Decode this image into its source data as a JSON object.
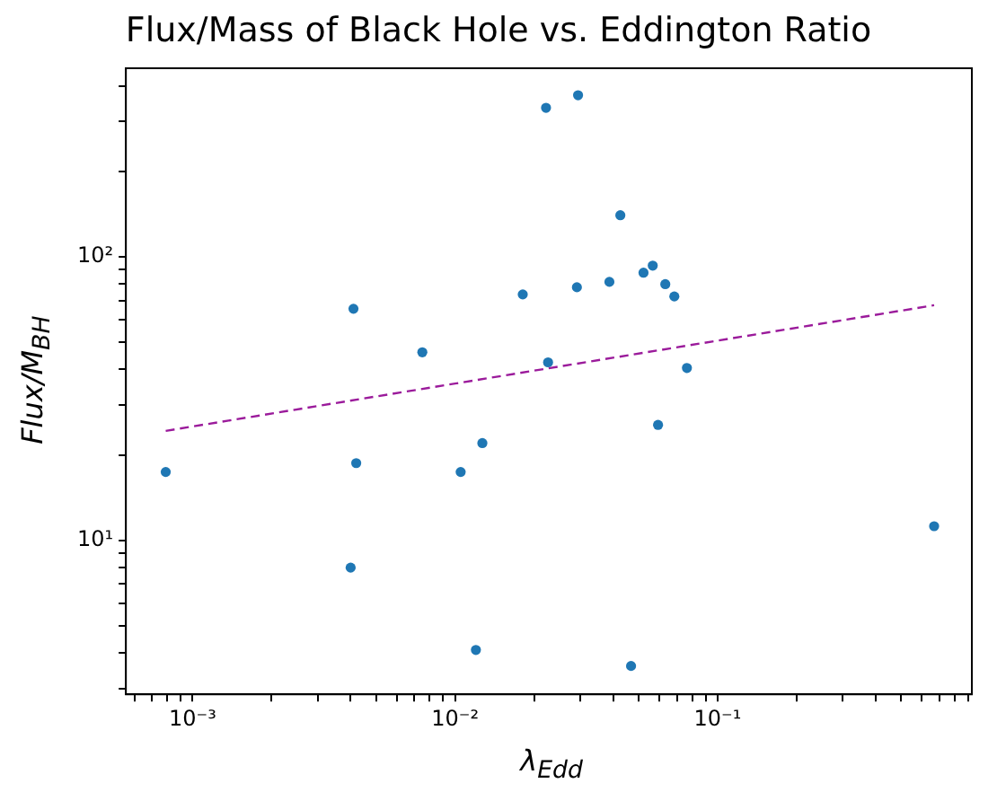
{
  "chart_data": {
    "type": "scatter",
    "title": "Flux/Mass of Black Hole vs. Eddington Ratio",
    "xlabel": "λ$_{Edd}$",
    "ylabel": "Flux/M$_{BH}$",
    "log": "xy",
    "grid": false,
    "legend": false,
    "marker": "circle",
    "xlim": [
      0.000557,
      0.93
    ],
    "ylim": [
      2.86,
      462
    ],
    "xticks": [
      {
        "value": 0.001,
        "label": "10⁻³"
      },
      {
        "value": 0.01,
        "label": "10⁻²"
      },
      {
        "value": 0.1,
        "label": "10⁻¹"
      },
      {
        "value": 0.0006,
        "label": null
      },
      {
        "value": 0.0007,
        "label": null
      },
      {
        "value": 0.0008,
        "label": null
      },
      {
        "value": 0.0009,
        "label": null
      },
      {
        "value": 0.002,
        "label": null
      },
      {
        "value": 0.003,
        "label": null
      },
      {
        "value": 0.004,
        "label": null
      },
      {
        "value": 0.005,
        "label": null
      },
      {
        "value": 0.006,
        "label": null
      },
      {
        "value": 0.007,
        "label": null
      },
      {
        "value": 0.008,
        "label": null
      },
      {
        "value": 0.009,
        "label": null
      },
      {
        "value": 0.02,
        "label": null
      },
      {
        "value": 0.03,
        "label": null
      },
      {
        "value": 0.04,
        "label": null
      },
      {
        "value": 0.05,
        "label": null
      },
      {
        "value": 0.06,
        "label": null
      },
      {
        "value": 0.07,
        "label": null
      },
      {
        "value": 0.08,
        "label": null
      },
      {
        "value": 0.09,
        "label": null
      },
      {
        "value": 0.2,
        "label": null
      },
      {
        "value": 0.3,
        "label": null
      },
      {
        "value": 0.4,
        "label": null
      },
      {
        "value": 0.5,
        "label": null
      },
      {
        "value": 0.6,
        "label": null
      },
      {
        "value": 0.7,
        "label": null
      },
      {
        "value": 0.8,
        "label": null
      },
      {
        "value": 0.9,
        "label": null
      }
    ],
    "yticks": [
      {
        "value": 10,
        "label": "10¹"
      },
      {
        "value": 100,
        "label": "10²"
      },
      {
        "value": 3,
        "label": null
      },
      {
        "value": 4,
        "label": null
      },
      {
        "value": 5,
        "label": null
      },
      {
        "value": 6,
        "label": null
      },
      {
        "value": 7,
        "label": null
      },
      {
        "value": 8,
        "label": null
      },
      {
        "value": 9,
        "label": null
      },
      {
        "value": 20,
        "label": null
      },
      {
        "value": 30,
        "label": null
      },
      {
        "value": 40,
        "label": null
      },
      {
        "value": 50,
        "label": null
      },
      {
        "value": 60,
        "label": null
      },
      {
        "value": 70,
        "label": null
      },
      {
        "value": 80,
        "label": null
      },
      {
        "value": 90,
        "label": null
      },
      {
        "value": 200,
        "label": null
      },
      {
        "value": 300,
        "label": null
      },
      {
        "value": 400,
        "label": null
      }
    ],
    "series": [
      {
        "color": "#1f77b4",
        "x": [
          0.00079,
          0.0041,
          0.0042,
          0.004,
          0.0075,
          0.0105,
          0.0127,
          0.012,
          0.0181,
          0.0222,
          0.0226,
          0.0291,
          0.0294,
          0.0387,
          0.0426,
          0.0522,
          0.0566,
          0.0593,
          0.0632,
          0.0684,
          0.0764,
          0.0468,
          0.668
        ],
        "values": [
          17.4,
          65.5,
          18.7,
          8.0,
          46,
          17.4,
          22,
          4.1,
          73.6,
          335,
          42.4,
          78,
          371,
          81.5,
          140,
          87.8,
          93,
          25.5,
          80,
          72.4,
          40.5,
          3.6,
          11.2
        ]
      },
      {
        "type": "line",
        "color": "#9b1b9b",
        "line_style": "dashed",
        "marker": "none",
        "x": [
          0.00079,
          0.668
        ],
        "values": [
          24.3,
          67.4
        ]
      }
    ]
  }
}
